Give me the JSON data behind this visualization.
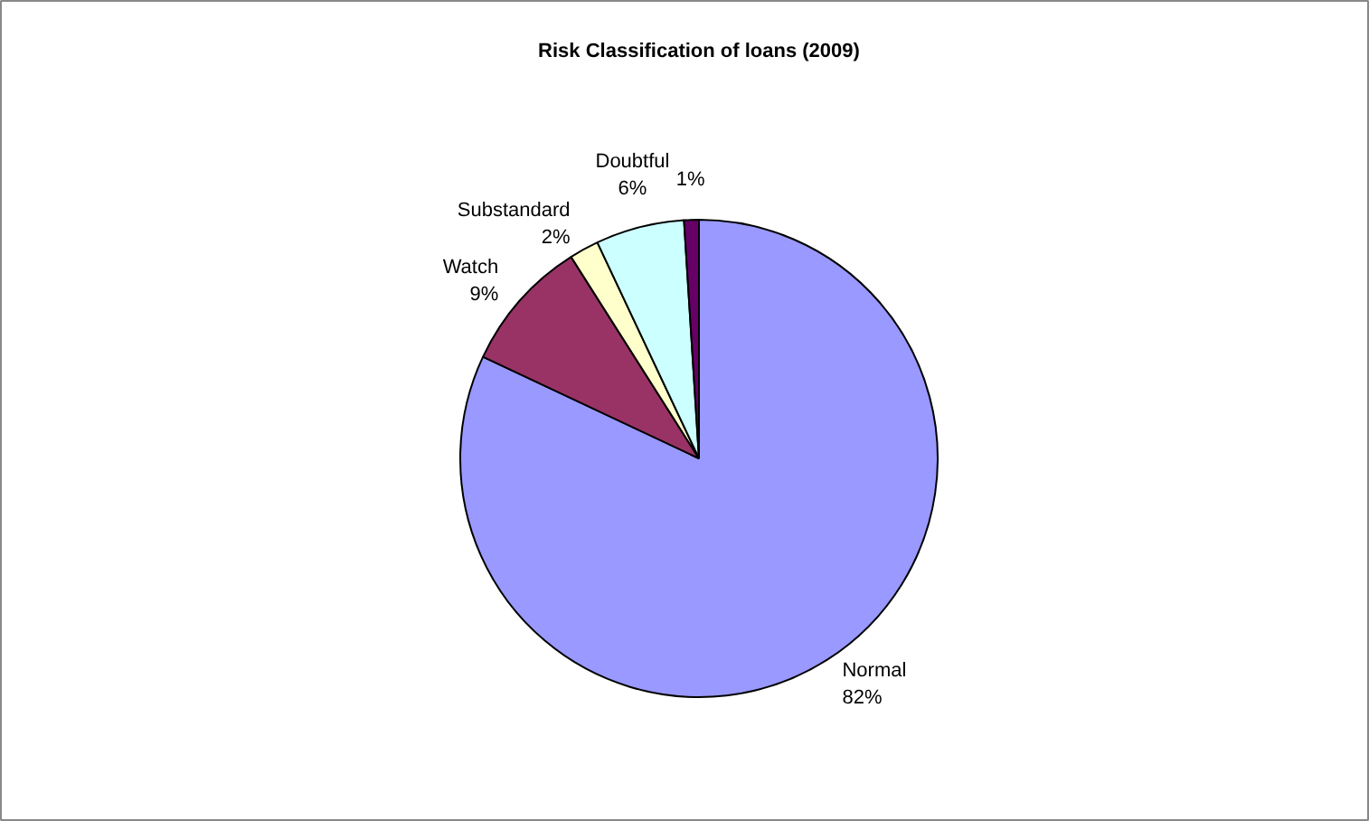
{
  "chart_data": {
    "type": "pie",
    "title": "Risk Classification of loans (2009)",
    "categories": [
      "Normal",
      "Watch",
      "Substandard",
      "Doubtful",
      null
    ],
    "values": [
      82,
      9,
      2,
      6,
      1
    ],
    "value_labels": [
      "82%",
      "9%",
      "2%",
      "6%",
      "1%"
    ],
    "colors": [
      "#9999ff",
      "#993366",
      "#ffffcc",
      "#ccffff",
      "#660066"
    ]
  }
}
